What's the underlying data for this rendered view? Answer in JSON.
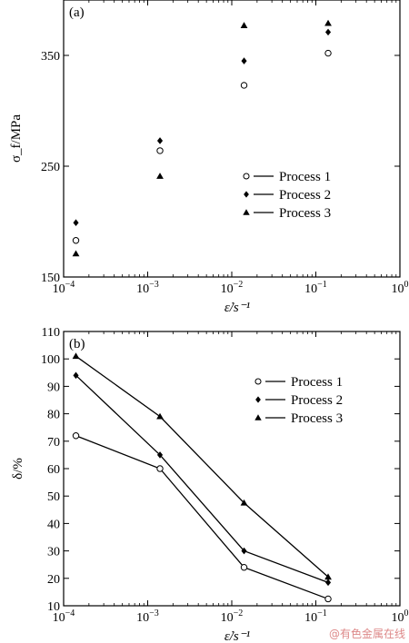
{
  "chart_data": [
    {
      "type": "scatter",
      "panel_label": "(a)",
      "ylabel": "σ_f/MPa",
      "xlabel": "ε̇/s⁻¹",
      "x_scale": "log",
      "xlim": [
        0.0001,
        1
      ],
      "ylim": [
        150,
        400
      ],
      "yticks": [
        "150",
        "250",
        "350"
      ],
      "ytick_values": [
        150,
        250,
        350
      ],
      "xticks": [
        {
          "base": "10",
          "exp": "−4"
        },
        {
          "base": "10",
          "exp": "−3"
        },
        {
          "base": "10",
          "exp": "−2"
        },
        {
          "base": "10",
          "exp": "−1"
        },
        {
          "base": "10",
          "exp": "0"
        }
      ],
      "xtick_values": [
        0.0001,
        0.001,
        0.01,
        0.1,
        1
      ],
      "legend": "right-middle",
      "series": [
        {
          "name": "Process 1",
          "marker": "circle-open",
          "x": [
            0.00014,
            0.0014,
            0.014,
            0.14
          ],
          "values": [
            183,
            264,
            323,
            352
          ]
        },
        {
          "name": "Process 2",
          "marker": "diamond",
          "x": [
            0.00014,
            0.0014,
            0.014,
            0.14
          ],
          "values": [
            199,
            273,
            345,
            371
          ]
        },
        {
          "name": "Process 3",
          "marker": "triangle",
          "x": [
            0.00014,
            0.0014,
            0.014,
            0.14
          ],
          "values": [
            171,
            241,
            377,
            379
          ]
        }
      ]
    },
    {
      "type": "line",
      "panel_label": "(b)",
      "ylabel": "δ/%",
      "xlabel": "ε̇/s⁻¹",
      "x_scale": "log",
      "xlim": [
        0.0001,
        1
      ],
      "ylim": [
        10,
        110
      ],
      "yticks": [
        "10",
        "20",
        "30",
        "40",
        "50",
        "60",
        "70",
        "80",
        "90",
        "100",
        "110"
      ],
      "ytick_values": [
        10,
        20,
        30,
        40,
        50,
        60,
        70,
        80,
        90,
        100,
        110
      ],
      "xticks": [
        {
          "base": "10",
          "exp": "−4"
        },
        {
          "base": "10",
          "exp": "−3"
        },
        {
          "base": "10",
          "exp": "−2"
        },
        {
          "base": "10",
          "exp": "−1"
        },
        {
          "base": "10",
          "exp": "0"
        }
      ],
      "xtick_values": [
        0.0001,
        0.001,
        0.01,
        0.1,
        1
      ],
      "legend": "top-right",
      "series": [
        {
          "name": "Process 1",
          "marker": "circle-open",
          "x": [
            0.00014,
            0.0014,
            0.014,
            0.14
          ],
          "values": [
            72,
            60,
            24,
            12.5
          ]
        },
        {
          "name": "Process 2",
          "marker": "diamond",
          "x": [
            0.00014,
            0.0014,
            0.014,
            0.14
          ],
          "values": [
            94,
            65,
            30,
            18.5
          ]
        },
        {
          "name": "Process 3",
          "marker": "triangle",
          "x": [
            0.00014,
            0.0014,
            0.014,
            0.14
          ],
          "values": [
            101,
            79,
            47.5,
            20.5
          ]
        }
      ]
    }
  ],
  "watermark": "@有色金属在线"
}
